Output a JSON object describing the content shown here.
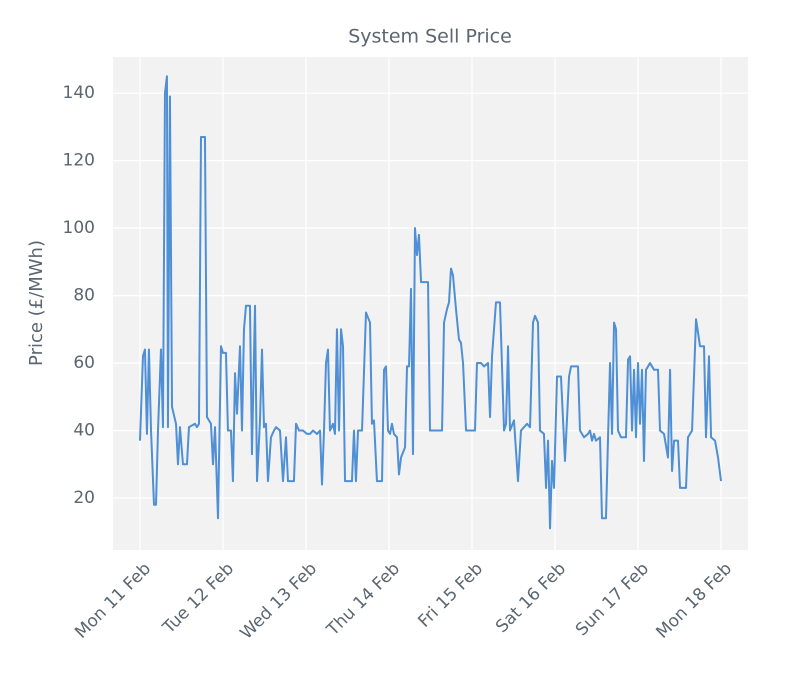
{
  "chart_data": {
    "type": "line",
    "title": "System Sell Price",
    "ylabel": "Price (£/MWh)",
    "x": [
      0,
      0.036,
      0.06,
      0.084,
      0.108,
      0.133,
      0.169,
      0.193,
      0.217,
      0.253,
      0.277,
      0.301,
      0.325,
      0.337,
      0.361,
      0.386,
      0.434,
      0.458,
      0.482,
      0.518,
      0.566,
      0.59,
      0.663,
      0.687,
      0.711,
      0.735,
      0.783,
      0.807,
      0.855,
      0.88,
      0.904,
      0.94,
      0.976,
      1.0,
      1.036,
      1.06,
      1.096,
      1.12,
      1.145,
      1.169,
      1.205,
      1.229,
      1.253,
      1.277,
      1.325,
      1.349,
      1.386,
      1.41,
      1.446,
      1.47,
      1.494,
      1.518,
      1.542,
      1.578,
      1.614,
      1.639,
      1.687,
      1.723,
      1.759,
      1.783,
      1.855,
      1.88,
      1.916,
      1.964,
      2.012,
      2.048,
      2.084,
      2.133,
      2.169,
      2.193,
      2.217,
      2.241,
      2.265,
      2.289,
      2.325,
      2.349,
      2.373,
      2.398,
      2.422,
      2.446,
      2.47,
      2.554,
      2.578,
      2.602,
      2.627,
      2.675,
      2.723,
      2.771,
      2.795,
      2.819,
      2.855,
      2.916,
      2.94,
      2.964,
      2.988,
      3.012,
      3.036,
      3.06,
      3.096,
      3.12,
      3.145,
      3.193,
      3.217,
      3.241,
      3.265,
      3.289,
      3.313,
      3.337,
      3.361,
      3.386,
      3.47,
      3.494,
      3.639,
      3.663,
      3.699,
      3.723,
      3.747,
      3.771,
      3.807,
      3.843,
      3.867,
      3.892,
      3.928,
      4.036,
      4.06,
      4.108,
      4.145,
      4.193,
      4.217,
      4.241,
      4.289,
      4.337,
      4.386,
      4.41,
      4.434,
      4.458,
      4.506,
      4.554,
      4.59,
      4.663,
      4.699,
      4.735,
      4.759,
      4.795,
      4.819,
      4.867,
      4.892,
      4.916,
      4.94,
      4.964,
      4.988,
      5.024,
      5.072,
      5.12,
      5.169,
      5.193,
      5.277,
      5.301,
      5.349,
      5.398,
      5.422,
      5.446,
      5.47,
      5.494,
      5.542,
      5.566,
      5.614,
      5.639,
      5.663,
      5.687,
      5.711,
      5.735,
      5.759,
      5.795,
      5.855,
      5.88,
      5.904,
      5.928,
      5.952,
      5.976,
      6.0,
      6.024,
      6.048,
      6.072,
      6.096,
      6.145,
      6.193,
      6.241,
      6.265,
      6.313,
      6.361,
      6.386,
      6.41,
      6.434,
      6.482,
      6.506,
      6.578,
      6.602,
      6.651,
      6.699,
      6.747,
      6.795,
      6.819,
      6.855,
      6.88,
      6.928,
      6.964,
      7.0
    ],
    "series": [
      {
        "name": "System Sell Price",
        "color": "#4f8fd5",
        "values": [
          37,
          62,
          64,
          39,
          64,
          40,
          18,
          18,
          40,
          64,
          41,
          140,
          145,
          41,
          139,
          47,
          42,
          30,
          41,
          30,
          30,
          41,
          42,
          41,
          42,
          127,
          127,
          44,
          42,
          30,
          41,
          14,
          65,
          63,
          63,
          40,
          40,
          25,
          57,
          45,
          65,
          40,
          70,
          77,
          77,
          33,
          77,
          25,
          43,
          64,
          41,
          42,
          25,
          38,
          40,
          41,
          40,
          25,
          38,
          25,
          25,
          42,
          40,
          40,
          39,
          39,
          40,
          39,
          40,
          24,
          40,
          60,
          64,
          40,
          42,
          39,
          70,
          40,
          70,
          65,
          25,
          25,
          40,
          25,
          40,
          40,
          75,
          72,
          42,
          43,
          25,
          25,
          58,
          59,
          40,
          39,
          42,
          39,
          38,
          27,
          32,
          35,
          59,
          59,
          82,
          33,
          100,
          92,
          98,
          84,
          84,
          40,
          40,
          72,
          76,
          78,
          88,
          86,
          76,
          67,
          66,
          60,
          40,
          40,
          60,
          60,
          59,
          60,
          44,
          62,
          78,
          78,
          40,
          42,
          65,
          40,
          43,
          25,
          40,
          42,
          41,
          72,
          74,
          72,
          40,
          39,
          23,
          37,
          11,
          31,
          23,
          56,
          56,
          31,
          56,
          59,
          59,
          40,
          38,
          39,
          40,
          37,
          39,
          37,
          38,
          14,
          14,
          38,
          60,
          39,
          72,
          70,
          40,
          38,
          38,
          61,
          62,
          40,
          58,
          38,
          60,
          42,
          58,
          31,
          58,
          60,
          58,
          58,
          40,
          39,
          32,
          58,
          28,
          37,
          37,
          23,
          23,
          38,
          40,
          73,
          65,
          65,
          38,
          62,
          38,
          37,
          32,
          25
        ]
      }
    ],
    "xlim": [
      -0.325,
      7.325
    ],
    "xticks": [
      {
        "value": 0,
        "label": "Mon 11 Feb"
      },
      {
        "value": 1,
        "label": "Tue 12 Feb"
      },
      {
        "value": 2,
        "label": "Wed 13 Feb"
      },
      {
        "value": 3,
        "label": "Thu 14 Feb"
      },
      {
        "value": 4,
        "label": "Fri 15 Feb"
      },
      {
        "value": 5,
        "label": "Sat 16 Feb"
      },
      {
        "value": 6,
        "label": "Sun 17 Feb"
      },
      {
        "value": 7,
        "label": "Mon 18 Feb"
      }
    ],
    "ylim": [
      4.6,
      150.7
    ],
    "yticks": [
      20,
      40,
      60,
      80,
      100,
      120,
      140
    ],
    "grid": true
  }
}
